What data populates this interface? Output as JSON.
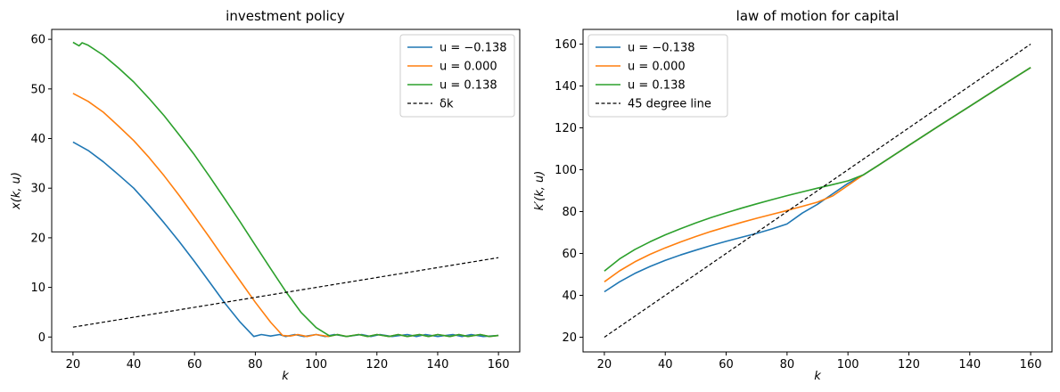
{
  "chart_data": [
    {
      "type": "line",
      "title": "investment policy",
      "xlabel": "k",
      "ylabel": "x(k, u)",
      "xlim": [
        13,
        167
      ],
      "ylim": [
        -3,
        62
      ],
      "xticks": [
        20,
        40,
        60,
        80,
        100,
        120,
        140,
        160
      ],
      "yticks": [
        0,
        10,
        20,
        30,
        40,
        50,
        60
      ],
      "legend_position": "top-right",
      "series": [
        {
          "name": "u = −0.138",
          "color": "#1f77b4",
          "dash": false,
          "x": [
            20,
            25,
            30,
            35,
            40,
            45,
            50,
            55,
            60,
            65,
            70,
            75,
            79.5,
            82,
            85,
            88,
            90,
            93,
            96,
            100,
            103,
            106,
            110,
            115,
            118,
            121,
            125,
            130,
            133,
            136,
            140,
            145,
            148,
            151,
            155,
            160
          ],
          "y": [
            39.3,
            37.6,
            35.3,
            32.7,
            30.0,
            26.6,
            23.0,
            19.2,
            15.2,
            11.0,
            6.8,
            3.0,
            0.1,
            0.5,
            0.2,
            0.5,
            0.1,
            0.5,
            0.1,
            0.5,
            0.1,
            0.5,
            0.1,
            0.5,
            0.1,
            0.5,
            0.1,
            0.5,
            0.1,
            0.5,
            0.1,
            0.5,
            0.1,
            0.5,
            0.1,
            0.3
          ]
        },
        {
          "name": "u = 0.000",
          "color": "#ff7f0e",
          "dash": false,
          "x": [
            20,
            25,
            30,
            35,
            40,
            45,
            50,
            55,
            60,
            65,
            70,
            75,
            80,
            85,
            89,
            91.5,
            94,
            97,
            100,
            104,
            107,
            110,
            114,
            117,
            120,
            124,
            127,
            130,
            134,
            137,
            140,
            144,
            147,
            150,
            154,
            157,
            160
          ],
          "y": [
            49.1,
            47.5,
            45.3,
            42.5,
            39.6,
            36.2,
            32.5,
            28.5,
            24.3,
            20.0,
            15.6,
            11.3,
            7.0,
            3.0,
            0.3,
            0.2,
            0.5,
            0.1,
            0.5,
            0.1,
            0.5,
            0.1,
            0.5,
            0.1,
            0.5,
            0.1,
            0.5,
            0.1,
            0.5,
            0.1,
            0.5,
            0.1,
            0.5,
            0.1,
            0.5,
            0.1,
            0.3
          ]
        },
        {
          "name": "u = 0.138",
          "color": "#2ca02c",
          "dash": false,
          "x": [
            20,
            22,
            23,
            25,
            30,
            35,
            40,
            45,
            50,
            55,
            60,
            65,
            70,
            75,
            80,
            85,
            90,
            95,
            100,
            104.5,
            107,
            110,
            114,
            117,
            120,
            124,
            127,
            130,
            134,
            137,
            140,
            144,
            147,
            150,
            154,
            157,
            160
          ],
          "y": [
            59.4,
            58.7,
            59.3,
            58.8,
            56.8,
            54.2,
            51.4,
            48.1,
            44.6,
            40.7,
            36.7,
            32.3,
            27.8,
            23.2,
            18.5,
            13.8,
            9.2,
            5.0,
            1.9,
            0.2,
            0.5,
            0.1,
            0.5,
            0.1,
            0.5,
            0.1,
            0.5,
            0.1,
            0.5,
            0.1,
            0.5,
            0.1,
            0.5,
            0.1,
            0.5,
            0.1,
            0.3
          ]
        },
        {
          "name": "δk",
          "color": "#000000",
          "dash": true,
          "x": [
            20,
            160
          ],
          "y": [
            2.0,
            16.0
          ]
        }
      ]
    },
    {
      "type": "line",
      "title": "law of motion for capital",
      "xlabel": "k",
      "ylabel": "k′(k, u)",
      "xlim": [
        13,
        167
      ],
      "ylim": [
        13,
        167
      ],
      "xticks": [
        20,
        40,
        60,
        80,
        100,
        120,
        140,
        160
      ],
      "yticks": [
        20,
        40,
        60,
        80,
        100,
        120,
        140,
        160
      ],
      "legend_position": "top-left",
      "series": [
        {
          "name": "u = −0.138",
          "color": "#1f77b4",
          "dash": false,
          "x": [
            20,
            25,
            30,
            35,
            40,
            45,
            50,
            55,
            60,
            65,
            70,
            75,
            80,
            85,
            90,
            95,
            100,
            105,
            110,
            120,
            130,
            140,
            150,
            160
          ],
          "y": [
            41.7,
            46.5,
            50.5,
            53.8,
            56.7,
            59.3,
            61.6,
            63.8,
            65.8,
            67.7,
            69.6,
            71.7,
            74.1,
            79.3,
            83.5,
            88.5,
            93.5,
            97.5,
            102.1,
            111.6,
            121.0,
            130.3,
            139.6,
            148.8
          ]
        },
        {
          "name": "u = 0.000",
          "color": "#ff7f0e",
          "dash": false,
          "x": [
            20,
            25,
            30,
            35,
            40,
            45,
            50,
            55,
            60,
            65,
            70,
            75,
            80,
            85,
            90,
            95,
            100,
            105,
            110,
            120,
            130,
            140,
            150,
            160
          ],
          "y": [
            46.5,
            51.7,
            56.0,
            59.6,
            62.7,
            65.5,
            68.1,
            70.5,
            72.7,
            74.8,
            76.8,
            78.7,
            80.5,
            82.5,
            84.5,
            87.5,
            92.5,
            97.5,
            102.1,
            111.6,
            121.0,
            130.3,
            139.6,
            148.8
          ]
        },
        {
          "name": "u = 0.138",
          "color": "#2ca02c",
          "dash": false,
          "x": [
            20,
            25,
            30,
            35,
            40,
            45,
            50,
            55,
            60,
            65,
            70,
            75,
            80,
            85,
            90,
            95,
            100,
            105,
            110,
            120,
            130,
            140,
            150,
            160
          ],
          "y": [
            51.6,
            57.4,
            61.9,
            65.6,
            68.9,
            71.8,
            74.6,
            77.1,
            79.4,
            81.6,
            83.7,
            85.7,
            87.6,
            89.4,
            91.2,
            92.9,
            94.7,
            97.5,
            102.1,
            111.6,
            121.0,
            130.3,
            139.6,
            148.8
          ]
        },
        {
          "name": "45 degree line",
          "color": "#000000",
          "dash": true,
          "x": [
            20,
            160
          ],
          "y": [
            20,
            160
          ]
        }
      ]
    }
  ]
}
